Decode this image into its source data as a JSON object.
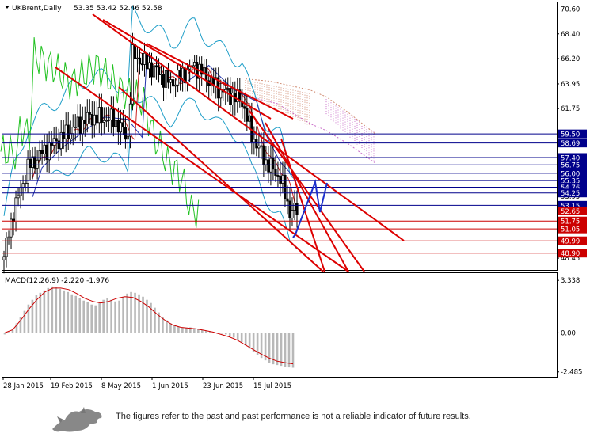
{
  "chart_data": [
    {
      "type": "candlestick",
      "header": {
        "symbol": "UKBrent,Daily",
        "ohlc": "53.35 53.42 52.46 52.58"
      },
      "ylim": [
        47.4,
        71.2
      ],
      "x_dates": [
        "28 Jan 2015",
        "19 Feb 2015",
        "8 May 2015",
        "1 Jun 2015",
        "23 Jun 2015",
        "15 Jul 2015"
      ],
      "y_ticks": [
        "70.60",
        "68.40",
        "66.20",
        "63.95",
        "61.75",
        "59.50",
        "57.40",
        "56.00",
        "53.95",
        "51.75",
        "49.99",
        "48.45"
      ],
      "levels": [
        {
          "value": 59.5,
          "label": "59.50",
          "color": "#00008b"
        },
        {
          "value": 58.69,
          "label": "58.69",
          "color": "#00008b"
        },
        {
          "value": 57.4,
          "label": "57.40",
          "color": "#00008b"
        },
        {
          "value": 56.75,
          "label": "56.75",
          "color": "#00008b"
        },
        {
          "value": 56.0,
          "label": "56.00",
          "color": "#00008b"
        },
        {
          "value": 55.35,
          "label": "55.35",
          "color": "#00008b"
        },
        {
          "value": 54.76,
          "label": "54.76",
          "color": "#00008b"
        },
        {
          "value": 54.25,
          "label": "54.25",
          "color": "#00008b"
        },
        {
          "value": 53.15,
          "label": "53.15",
          "color": "#00008b"
        },
        {
          "value": 52.65,
          "label": "52.65",
          "color": "#cc0000"
        },
        {
          "value": 51.75,
          "label": "51.75",
          "color": "#cc0000"
        },
        {
          "value": 51.05,
          "label": "51.05",
          "color": "#cc0000"
        },
        {
          "value": 49.99,
          "label": "49.99",
          "color": "#cc0000"
        },
        {
          "value": 48.9,
          "label": "48.90",
          "color": "#cc0000"
        }
      ],
      "colors": {
        "price_bg": "#00008b",
        "support_bg": "#cc0000",
        "trend": "#dd0000",
        "projection": "#1a2ecc",
        "cloud": "#d08a70",
        "cloud2": "#c96fc9",
        "chikou": "#22c222",
        "bollinger": "#1e9ec8"
      }
    },
    {
      "type": "bar",
      "title": "MACD(12,26,9) -2.220 -1.976",
      "ylim": [
        -2.8,
        3.8
      ],
      "y_ticks": [
        "3.338",
        "0.00",
        "-2.485"
      ],
      "histogram": [
        -0.1,
        0.05,
        0.2,
        0.6,
        1.0,
        1.4,
        1.8,
        2.1,
        2.4,
        2.55,
        2.7,
        2.85,
        2.95,
        2.9,
        2.8,
        2.7,
        2.6,
        2.45,
        2.35,
        2.2,
        2.05,
        1.95,
        1.8,
        1.75,
        1.9,
        2.1,
        2.2,
        2.1,
        2.0,
        2.05,
        2.3,
        2.5,
        2.6,
        2.55,
        2.45,
        2.3,
        2.1,
        1.9,
        1.6,
        1.3,
        1.0,
        0.8,
        0.6,
        0.45,
        0.4,
        0.35,
        0.3,
        0.35,
        0.3,
        0.25,
        0.2,
        0.15,
        0.1,
        0.05,
        0.0,
        -0.05,
        -0.1,
        -0.2,
        -0.3,
        -0.45,
        -0.6,
        -0.8,
        -1.0,
        -1.2,
        -1.4,
        -1.6,
        -1.75,
        -1.9,
        -2.0,
        -2.05,
        -2.1,
        -2.15,
        -2.2,
        -2.22
      ],
      "signal": [
        0.0,
        0.2,
        0.8,
        1.5,
        2.1,
        2.6,
        2.85,
        2.85,
        2.75,
        2.5,
        2.2,
        2.0,
        1.9,
        2.0,
        2.2,
        2.3,
        2.25,
        2.0,
        1.65,
        1.2,
        0.8,
        0.5,
        0.35,
        0.3,
        0.25,
        0.15,
        0.05,
        -0.1,
        -0.25,
        -0.45,
        -0.75,
        -1.05,
        -1.35,
        -1.6,
        -1.8,
        -1.9,
        -1.976
      ]
    }
  ],
  "footer": {
    "disclaimer": "The figures refer to the past and past performance is not a reliable indicator of future results."
  }
}
